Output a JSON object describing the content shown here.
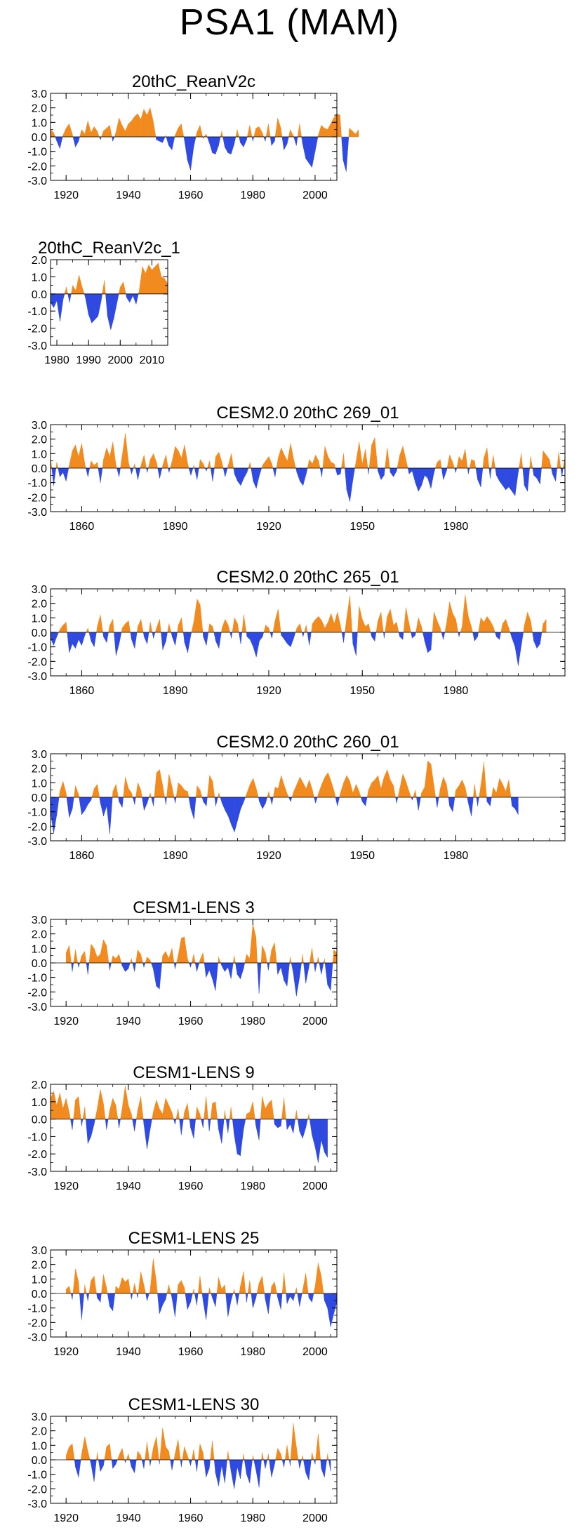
{
  "figure": {
    "title": "PSA1 (MAM)"
  },
  "colors": {
    "positive": "#f18a1f",
    "negative": "#2f4ae0",
    "axis": "#000000"
  },
  "chart_data": [
    {
      "type": "area",
      "title": "20thC_ReanV2c",
      "xlim": [
        1915,
        2007
      ],
      "ylim": [
        -3.0,
        3.0
      ],
      "xticks": [
        1920,
        1940,
        1960,
        1980,
        2000
      ],
      "xtick_labels": [
        "1920",
        "1940",
        "1960",
        "1980",
        "2000"
      ],
      "yticks": [
        -3.0,
        -2.0,
        -1.0,
        0.0,
        1.0,
        2.0,
        3.0
      ],
      "ytick_labels": [
        "-3.0",
        "-2.0",
        "-1.0",
        "0.0",
        "1.0",
        "2.0",
        "3.0"
      ],
      "x_start": 1915,
      "x_step": 1,
      "values": [
        0.5,
        0.3,
        -0.3,
        -0.8,
        0.1,
        0.6,
        0.9,
        0.2,
        -0.7,
        -0.3,
        0.5,
        0.2,
        1.1,
        0.3,
        0.7,
        0.4,
        -0.2,
        0.4,
        0.6,
        0.8,
        -0.3,
        0.3,
        1.3,
        0.8,
        0.4,
        0.9,
        1.1,
        1.4,
        1.6,
        1.2,
        1.9,
        1.5,
        2.0,
        1.1,
        -0.2,
        -0.3,
        -0.4,
        0.1,
        -0.6,
        -0.9,
        0.1,
        0.6,
        0.9,
        -0.2,
        -1.6,
        -2.3,
        -0.7,
        0.3,
        0.8,
        -0.1,
        0.2,
        -0.4,
        -1.1,
        -1.2,
        -0.6,
        0.4,
        -0.7,
        -1.1,
        -1.2,
        -0.5,
        0.5,
        -0.4,
        -0.7,
        -0.2,
        0.8,
        -0.3,
        0.6,
        0.7,
        0.3,
        -0.3,
        0.9,
        -0.6,
        -0.3,
        1.3,
        0.6,
        -0.9,
        -0.5,
        0.5,
        0.1,
        -0.6,
        0.9,
        -0.5,
        -1.5,
        -1.8,
        -2.1,
        -1.0,
        0.1,
        0.8,
        0.6,
        0.5,
        0.9,
        1.3,
        1.6,
        1.5,
        -1.6,
        -2.4,
        0.6,
        0.4,
        0.2,
        0.5
      ]
    },
    {
      "type": "area",
      "title": "20thC_ReanV2c_1",
      "xlim": [
        1978,
        2015
      ],
      "ylim": [
        -3.0,
        2.0
      ],
      "xticks": [
        1980,
        1990,
        2000,
        2010
      ],
      "xtick_labels": [
        "1980",
        "1990",
        "2000",
        "2010"
      ],
      "yticks": [
        -3.0,
        -2.0,
        -1.0,
        0.0,
        1.0,
        2.0
      ],
      "ytick_labels": [
        "-3.0",
        "-2.0",
        "-1.0",
        "0.0",
        "1.0",
        "2.0"
      ],
      "x_start": 1978,
      "x_step": 1,
      "values": [
        -0.5,
        -0.8,
        -0.4,
        -1.6,
        -0.3,
        0.4,
        -0.5,
        0.5,
        0.2,
        1.1,
        0.4,
        -0.2,
        -1.2,
        -1.7,
        -1.5,
        -1.3,
        -0.4,
        0.8,
        -1.3,
        -2.1,
        -1.4,
        -0.5,
        0.4,
        0.7,
        -0.2,
        -0.5,
        -0.1,
        -0.6,
        0.2,
        1.6,
        1.2,
        1.7,
        1.4,
        1.6,
        1.8,
        1.0,
        0.9,
        0.6
      ]
    },
    {
      "type": "area",
      "title": "CESM2.0 20thC 269_01",
      "xlim": [
        1850,
        2015
      ],
      "ylim": [
        -3.0,
        3.0
      ],
      "xticks": [
        1860,
        1890,
        1920,
        1950,
        1980
      ],
      "xtick_labels": [
        "1860",
        "1890",
        "1920",
        "1950",
        "1980"
      ],
      "yticks": [
        -3.0,
        -2.0,
        -1.0,
        0.0,
        1.0,
        2.0,
        3.0
      ],
      "ytick_labels": [
        "-3.0",
        "-2.0",
        "-1.0",
        "0.0",
        "1.0",
        "2.0",
        "3.0"
      ],
      "x_start": 1850,
      "x_step": 1,
      "values": [
        0.8,
        -1.2,
        0.4,
        -0.6,
        -0.3,
        -0.9,
        0.2,
        1.2,
        1.6,
        0.8,
        1.7,
        0.3,
        -0.6,
        0.5,
        0.2,
        0.4,
        -1.0,
        0.6,
        1.4,
        0.8,
        1.8,
        0.2,
        -0.6,
        0.9,
        2.4,
        0.4,
        -0.4,
        0.3,
        -0.8,
        0.2,
        0.9,
        -0.3,
        0.6,
        1.0,
        0.4,
        -0.7,
        0.2,
        0.9,
        -0.3,
        0.5,
        1.5,
        1.2,
        0.7,
        1.6,
        0.3,
        -0.5,
        0.2,
        -0.8,
        0.6,
        0.3,
        -0.2,
        0.5,
        -0.9,
        0.8,
        1.1,
        0.4,
        -0.6,
        0.2,
        1.0,
        -0.4,
        -0.9,
        -1.2,
        -0.7,
        -0.3,
        0.4,
        -0.9,
        -1.4,
        -0.5,
        0.2,
        0.5,
        0.8,
        0.3,
        -0.6,
        0.7,
        1.4,
        0.9,
        0.5,
        1.7,
        0.6,
        -0.3,
        -0.9,
        -1.2,
        -0.4,
        0.6,
        0.3,
        0.9,
        0.5,
        -0.6,
        1.5,
        0.8,
        0.4,
        0.3,
        -0.5,
        -0.4,
        1.0,
        -1.5,
        -2.3,
        -0.8,
        0.5,
        1.8,
        0.3,
        1.3,
        -0.4,
        1.6,
        2.1,
        -0.2,
        -0.8,
        -0.5,
        1.4,
        -0.3,
        -0.6,
        -0.2,
        0.9,
        1.5,
        0.6,
        -0.4,
        -0.2,
        -1.0,
        -1.6,
        -1.2,
        -0.5,
        -0.7,
        -1.4,
        -0.3,
        0.4,
        0.6,
        -0.8,
        -0.2,
        0.9,
        0.4,
        -0.3,
        0.8,
        0.5,
        1.3,
        -0.4,
        0.6,
        0.5,
        -0.8,
        -1.3,
        0.7,
        1.4,
        -0.7,
        0.9,
        -0.5,
        -0.9,
        -1.2,
        -1.5,
        -1.3,
        -1.6,
        -1.9,
        -0.3,
        1.0,
        -1.2,
        -1.6,
        0.8,
        -0.5,
        -0.7,
        -1.1,
        1.2,
        0.9,
        0.6,
        -0.4,
        -0.9,
        1.1,
        -0.6,
        0.8
      ]
    },
    {
      "type": "area",
      "title": "CESM2.0 20thC 265_01",
      "xlim": [
        1850,
        2015
      ],
      "ylim": [
        -3.0,
        3.0
      ],
      "xticks": [
        1860,
        1890,
        1920,
        1950,
        1980
      ],
      "xtick_labels": [
        "1860",
        "1890",
        "1920",
        "1950",
        "1980"
      ],
      "yticks": [
        -3.0,
        -2.0,
        -1.0,
        0.0,
        1.0,
        2.0,
        3.0
      ],
      "ytick_labels": [
        "-3.0",
        "-2.0",
        "-1.0",
        "0.0",
        "1.0",
        "2.0",
        "3.0"
      ],
      "x_start": 1850,
      "x_step": 1,
      "values": [
        -0.4,
        -0.9,
        -0.3,
        0.2,
        0.5,
        0.7,
        -1.4,
        -0.8,
        -1.1,
        -0.5,
        -0.9,
        -0.2,
        0.3,
        -0.6,
        -1.0,
        0.4,
        1.2,
        -0.3,
        -0.7,
        0.5,
        0.9,
        -1.6,
        -0.8,
        0.3,
        0.6,
        0.8,
        -0.5,
        -1.1,
        0.4,
        0.9,
        -0.3,
        -0.8,
        0.7,
        -0.4,
        0.3,
        0.9,
        -1.2,
        -0.6,
        0.6,
        -0.3,
        -0.9,
        0.5,
        1.0,
        -0.7,
        -1.4,
        -0.2,
        0.8,
        2.3,
        1.9,
        -0.3,
        -0.9,
        0.6,
        0.4,
        -0.6,
        -1.1,
        0.3,
        0.9,
        0.5,
        -0.4,
        1.0,
        0.6,
        -0.8,
        1.2,
        -0.3,
        -0.5,
        -1.0,
        -1.7,
        -0.6,
        -0.3,
        0.5,
        0.3,
        -0.4,
        0.8,
        1.6,
        -0.2,
        -0.5,
        -0.8,
        -1.0,
        -0.4,
        0.3,
        0.6,
        -0.3,
        0.5,
        -0.9,
        0.6,
        0.9,
        1.1,
        0.8,
        0.3,
        0.7,
        1.3,
        0.6,
        1.4,
        0.5,
        -0.7,
        1.0,
        2.5,
        -0.8,
        -1.6,
        1.8,
        0.9,
        0.4,
        0.6,
        -0.3,
        -0.6,
        0.8,
        1.4,
        -0.4,
        1.1,
        1.6,
        0.5,
        0.7,
        -0.3,
        -0.5,
        1.7,
        0.6,
        -0.4,
        -0.2,
        1.0,
        0.4,
        -0.6,
        -1.4,
        -1.2,
        1.4,
        0.8,
        0.3,
        -0.5,
        0.6,
        2.1,
        1.3,
        0.9,
        -0.3,
        0.4,
        2.6,
        1.1,
        0.4,
        -0.6,
        -0.3,
        1.0,
        0.7,
        1.1,
        0.8,
        0.4,
        -0.3,
        -0.5,
        0.6,
        0.9,
        0.3,
        -0.4,
        -1.0,
        -2.3,
        -0.9,
        0.5,
        1.4,
        0.8,
        -0.6,
        -1.1,
        -0.8,
        0.6,
        0.9
      ]
    },
    {
      "type": "area",
      "title": "CESM2.0 20thC 260_01",
      "xlim": [
        1850,
        2015
      ],
      "ylim": [
        -3.0,
        3.0
      ],
      "xticks": [
        1860,
        1890,
        1920,
        1950,
        1980
      ],
      "xtick_labels": [
        "1860",
        "1890",
        "1920",
        "1950",
        "1980"
      ],
      "yticks": [
        -3.0,
        -2.0,
        -1.0,
        0.0,
        1.0,
        2.0,
        3.0
      ],
      "ytick_labels": [
        "-3.0",
        "-2.0",
        "-1.0",
        "0.0",
        "1.0",
        "2.0",
        "3.0"
      ],
      "x_start": 1850,
      "x_step": 1,
      "values": [
        -1.0,
        -2.5,
        -1.2,
        0.4,
        1.1,
        0.3,
        -1.4,
        -0.8,
        0.8,
        0.2,
        -1.2,
        -0.9,
        -0.5,
        -0.2,
        0.6,
        0.9,
        -0.4,
        -1.3,
        -0.6,
        -2.5,
        0.4,
        0.9,
        -0.3,
        -0.7,
        1.4,
        0.6,
        0.3,
        -0.5,
        1.0,
        0.5,
        -0.9,
        -0.4,
        0.3,
        -0.6,
        1.7,
        1.9,
        0.8,
        -0.5,
        1.6,
        0.7,
        -0.4,
        1.0,
        0.8,
        0.5,
        0.4,
        -0.8,
        -1.5,
        0.8,
        0.5,
        -0.3,
        -0.6,
        1.5,
        1.1,
        -0.6,
        0.3,
        -0.4,
        -0.9,
        -1.3,
        -1.9,
        -2.4,
        -1.6,
        -0.8,
        -0.3,
        0.3,
        0.9,
        1.3,
        0.6,
        -0.3,
        -0.8,
        -0.4,
        0.4,
        -0.5,
        0.7,
        0.6,
        1.5,
        0.8,
        0.2,
        -0.3,
        0.4,
        0.9,
        1.4,
        1.0,
        0.6,
        1.2,
        0.5,
        -0.4,
        0.3,
        0.9,
        1.4,
        1.7,
        1.1,
        0.4,
        -0.6,
        0.3,
        1.0,
        1.5,
        1.1,
        0.3,
        0.9,
        0.4,
        -0.3,
        -0.6,
        0.5,
        1.0,
        1.2,
        1.5,
        0.6,
        1.4,
        1.9,
        1.2,
        0.8,
        -0.4,
        0.6,
        1.6,
        1.1,
        0.4,
        -0.2,
        0.5,
        -0.9,
        0.3,
        0.7,
        2.5,
        2.3,
        0.8,
        -0.7,
        0.6,
        1.4,
        0.9,
        -0.6,
        -1.0,
        0.5,
        0.8,
        1.2,
        0.7,
        -0.4,
        -1.3,
        0.9,
        -0.6,
        0.8,
        2.4,
        -0.3,
        -0.6,
        0.7,
        0.3,
        1.3,
        0.9,
        0.4,
        1.2,
        -0.6,
        -0.8,
        -1.2
      ]
    },
    {
      "type": "area",
      "title": "CESM1-LENS 3",
      "xlim": [
        1915,
        2007
      ],
      "ylim": [
        -3.0,
        3.0
      ],
      "xticks": [
        1920,
        1940,
        1960,
        1980,
        2000
      ],
      "xtick_labels": [
        "1920",
        "1940",
        "1960",
        "1980",
        "2000"
      ],
      "yticks": [
        -3.0,
        -2.0,
        -1.0,
        0.0,
        1.0,
        2.0,
        3.0
      ],
      "ytick_labels": [
        "-3.0",
        "-2.0",
        "-1.0",
        "0.0",
        "1.0",
        "2.0",
        "3.0"
      ],
      "x_start": 1920,
      "x_step": 1,
      "values": [
        0.7,
        1.2,
        -0.6,
        0.9,
        -0.3,
        0.5,
        0.8,
        -0.8,
        1.3,
        1.0,
        0.4,
        0.6,
        1.6,
        1.2,
        -0.5,
        0.5,
        0.3,
        0.6,
        -0.2,
        -0.6,
        -0.4,
        0.3,
        -0.6,
        0.9,
        0.6,
        -0.3,
        0.4,
        0.2,
        -0.4,
        -1.6,
        -1.8,
        0.5,
        0.8,
        0.3,
        1.0,
        -0.4,
        0.5,
        1.7,
        1.8,
        0.3,
        -0.3,
        0.6,
        -0.6,
        0.2,
        0.7,
        -1.0,
        -0.5,
        -1.1,
        -1.9,
        0.4,
        -0.2,
        -0.6,
        -0.3,
        -1.1,
        0.5,
        -0.8,
        -1.1,
        -0.4,
        0.6,
        0.3,
        2.7,
        1.8,
        -2.1,
        1.2,
        0.7,
        -0.5,
        0.9,
        1.4,
        -0.8,
        -0.3,
        -1.2,
        -1.6,
        0.4,
        -0.7,
        -2.3,
        -1.0,
        0.6,
        -1.4,
        -0.3,
        1.0,
        -0.6,
        0.4,
        -0.8,
        0.3,
        -1.5,
        -1.9,
        0.9,
        0.7
      ]
    },
    {
      "type": "area",
      "title": "CESM1-LENS 9",
      "xlim": [
        1915,
        2007
      ],
      "ylim": [
        -3.0,
        2.0
      ],
      "xticks": [
        1920,
        1940,
        1960,
        1980,
        2000
      ],
      "xtick_labels": [
        "1920",
        "1940",
        "1960",
        "1980",
        "2000"
      ],
      "yticks": [
        -3.0,
        -2.0,
        -1.0,
        0.0,
        1.0,
        2.0
      ],
      "ytick_labels": [
        "-3.0",
        "-2.0",
        "-1.0",
        "0.0",
        "1.0",
        "2.0"
      ],
      "x_start": 1915,
      "x_step": 1,
      "values": [
        1.2,
        1.6,
        0.8,
        1.5,
        0.6,
        1.2,
        0.4,
        -0.6,
        1.1,
        1.3,
        -0.4,
        0.7,
        -1.4,
        -1.0,
        -0.3,
        0.6,
        1.7,
        0.9,
        -0.6,
        0.5,
        1.2,
        0.8,
        -0.5,
        0.6,
        1.9,
        0.8,
        0.3,
        -0.7,
        0.5,
        1.3,
        -0.3,
        -1.7,
        -0.6,
        0.4,
        1.1,
        0.6,
        0.3,
        1.2,
        0.8,
        0.4,
        -0.3,
        0.6,
        -0.9,
        0.4,
        0.9,
        -0.5,
        -1.1,
        0.7,
        0.3,
        -0.5,
        1.3,
        -0.7,
        0.9,
        1.0,
        -0.6,
        -1.4,
        0.5,
        -0.8,
        0.7,
        -0.9,
        -2.0,
        -2.1,
        -0.6,
        0.3,
        0.4,
        1.0,
        -0.4,
        -1.2,
        1.3,
        0.6,
        0.9,
        1.1,
        -0.3,
        -0.5,
        -0.4,
        1.2,
        -0.6,
        -0.3,
        -0.8,
        0.5,
        -0.7,
        -1.1,
        -0.5,
        0.3,
        -0.9,
        -1.6,
        -2.5,
        -1.2,
        -1.9,
        -2.2
      ]
    },
    {
      "type": "area",
      "title": "CESM1-LENS 25",
      "xlim": [
        1915,
        2007
      ],
      "ylim": [
        -3.0,
        3.0
      ],
      "xticks": [
        1920,
        1940,
        1960,
        1980,
        2000
      ],
      "xtick_labels": [
        "1920",
        "1940",
        "1960",
        "1980",
        "2000"
      ],
      "yticks": [
        -3.0,
        -2.0,
        -1.0,
        0.0,
        1.0,
        2.0,
        3.0
      ],
      "ytick_labels": [
        "-3.0",
        "-2.0",
        "-1.0",
        "0.0",
        "1.0",
        "2.0",
        "3.0"
      ],
      "x_start": 1920,
      "x_step": 1,
      "values": [
        0.3,
        0.5,
        -0.4,
        1.7,
        0.8,
        -1.8,
        0.6,
        -0.5,
        0.9,
        1.2,
        -0.3,
        -0.6,
        1.3,
        0.4,
        -0.9,
        -1.2,
        0.5,
        0.3,
        1.1,
        0.8,
        1.0,
        -0.4,
        0.7,
        -0.3,
        1.5,
        0.6,
        -0.5,
        0.2,
        2.4,
        0.8,
        -1.4,
        -0.8,
        -0.4,
        0.6,
        -0.3,
        -1.6,
        0.6,
        0.9,
        0.4,
        -1.1,
        -0.6,
        0.3,
        -0.8,
        1.2,
        -0.5,
        -1.8,
        0.4,
        -0.3,
        -0.9,
        1.1,
        0.3,
        0.6,
        -1.6,
        -0.5,
        0.3,
        -0.8,
        0.5,
        1.5,
        -0.6,
        0.9,
        -1.0,
        -0.3,
        0.7,
        1.2,
        -0.4,
        -1.4,
        0.5,
        0.8,
        -0.3,
        -1.1,
        1.4,
        -0.7,
        -0.2,
        -0.5,
        0.4,
        -0.9,
        0.2,
        1.4,
        -0.3,
        -0.6,
        0.5,
        2.1,
        1.2,
        -0.5,
        -1.0,
        -2.3,
        -1.4,
        -0.6
      ]
    },
    {
      "type": "area",
      "title": "CESM1-LENS 30",
      "xlim": [
        1915,
        2007
      ],
      "ylim": [
        -3.0,
        3.0
      ],
      "xticks": [
        1920,
        1940,
        1960,
        1980,
        2000
      ],
      "xtick_labels": [
        "1920",
        "1940",
        "1960",
        "1980",
        "2000"
      ],
      "yticks": [
        -3.0,
        -2.0,
        -1.0,
        0.0,
        1.0,
        2.0,
        3.0
      ],
      "ytick_labels": [
        "-3.0",
        "-2.0",
        "-1.0",
        "0.0",
        "1.0",
        "2.0",
        "3.0"
      ],
      "x_start": 1920,
      "x_step": 1,
      "values": [
        0.3,
        0.9,
        1.1,
        -0.5,
        -1.2,
        0.4,
        1.6,
        0.6,
        -0.3,
        -1.5,
        0.5,
        -0.8,
        -0.4,
        0.9,
        1.1,
        -0.6,
        -0.3,
        0.3,
        0.8,
        -0.2,
        0.4,
        -0.5,
        -0.9,
        0.6,
        0.3,
        -0.6,
        1.2,
        -0.4,
        0.8,
        1.6,
        -0.3,
        2.2,
        0.9,
        0.6,
        -0.7,
        0.4,
        1.4,
        -0.5,
        0.9,
        0.3,
        -0.4,
        0.7,
        -0.8,
        1.1,
        0.5,
        -1.2,
        -0.6,
        1.3,
        -0.9,
        -1.8,
        -0.4,
        -1.6,
        0.6,
        -0.8,
        -2.0,
        -0.5,
        -1.3,
        0.4,
        -1.0,
        -1.6,
        0.3,
        -0.7,
        -1.9,
        0.5,
        -0.6,
        0.4,
        -1.2,
        -0.3,
        0.8,
        0.4,
        -0.5,
        1.0,
        -0.4,
        2.5,
        0.9,
        -0.6,
        0.3,
        -0.9,
        -1.4,
        0.5,
        -0.3,
        1.8,
        -0.6,
        -1.2,
        0.4,
        -0.8
      ]
    }
  ]
}
